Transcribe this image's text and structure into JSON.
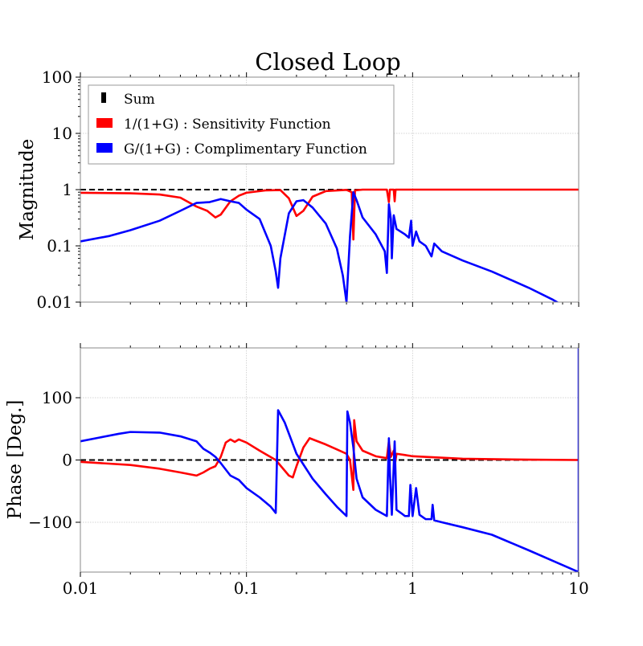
{
  "chart_data": {
    "type": "line",
    "title": "Closed Loop",
    "xscale": "log",
    "xlim": [
      0.01,
      10
    ],
    "x_ticks": [
      0.01,
      0.1,
      1,
      10
    ],
    "x_tick_labels": [
      "0.01",
      "0.1",
      "1",
      "10"
    ],
    "grid": true,
    "legend_position": "top-left",
    "legend": [
      {
        "label": "Sum",
        "color": "#000000"
      },
      {
        "label": "1/(1+G) : Sensitivity Function",
        "color": "#ff0000"
      },
      {
        "label": "G/(1+G) : Complimentary Function",
        "color": "#0000ff"
      }
    ],
    "panels": [
      {
        "ylabel": "Magnitude",
        "yscale": "log",
        "ylim": [
          0.01,
          100
        ],
        "y_ticks": [
          0.01,
          0.1,
          1,
          10,
          100
        ],
        "y_tick_labels": [
          "0.01",
          "0.1",
          "1",
          "10",
          "100"
        ],
        "series": [
          {
            "name": "Sum",
            "color": "#000000",
            "dashed": true,
            "points": [
              [
                0.01,
                1.0
              ],
              [
                10,
                1.0
              ]
            ]
          },
          {
            "name": "1/(1+G) : Sensitivity Function",
            "color": "#ff0000",
            "points": [
              [
                0.01,
                0.88
              ],
              [
                0.02,
                0.86
              ],
              [
                0.03,
                0.82
              ],
              [
                0.04,
                0.72
              ],
              [
                0.05,
                0.5
              ],
              [
                0.058,
                0.42
              ],
              [
                0.065,
                0.32
              ],
              [
                0.07,
                0.36
              ],
              [
                0.08,
                0.62
              ],
              [
                0.09,
                0.78
              ],
              [
                0.1,
                0.88
              ],
              [
                0.13,
                0.97
              ],
              [
                0.16,
                0.98
              ],
              [
                0.18,
                0.7
              ],
              [
                0.2,
                0.34
              ],
              [
                0.22,
                0.42
              ],
              [
                0.25,
                0.75
              ],
              [
                0.3,
                0.94
              ],
              [
                0.4,
                0.99
              ],
              [
                0.43,
                0.9
              ],
              [
                0.44,
                0.13
              ],
              [
                0.45,
                0.97
              ],
              [
                0.5,
                1.0
              ],
              [
                0.7,
                1.0
              ],
              [
                0.72,
                0.6
              ],
              [
                0.73,
                1.0
              ],
              [
                0.77,
                1.0
              ],
              [
                0.78,
                0.62
              ],
              [
                0.79,
                1.0
              ],
              [
                1,
                1.0
              ],
              [
                2,
                1.0
              ],
              [
                10,
                1.0
              ]
            ]
          },
          {
            "name": "G/(1+G) : Complimentary Function",
            "color": "#0000ff",
            "points": [
              [
                0.01,
                0.12
              ],
              [
                0.015,
                0.15
              ],
              [
                0.02,
                0.19
              ],
              [
                0.03,
                0.28
              ],
              [
                0.04,
                0.42
              ],
              [
                0.05,
                0.58
              ],
              [
                0.06,
                0.6
              ],
              [
                0.07,
                0.68
              ],
              [
                0.08,
                0.62
              ],
              [
                0.09,
                0.58
              ],
              [
                0.1,
                0.44
              ],
              [
                0.12,
                0.3
              ],
              [
                0.14,
                0.1
              ],
              [
                0.15,
                0.035
              ],
              [
                0.155,
                0.018
              ],
              [
                0.16,
                0.06
              ],
              [
                0.18,
                0.38
              ],
              [
                0.2,
                0.62
              ],
              [
                0.22,
                0.65
              ],
              [
                0.25,
                0.48
              ],
              [
                0.3,
                0.25
              ],
              [
                0.35,
                0.09
              ],
              [
                0.38,
                0.03
              ],
              [
                0.4,
                0.01
              ],
              [
                0.42,
                0.15
              ],
              [
                0.44,
                0.9
              ],
              [
                0.46,
                0.65
              ],
              [
                0.5,
                0.32
              ],
              [
                0.6,
                0.16
              ],
              [
                0.68,
                0.08
              ],
              [
                0.7,
                0.033
              ],
              [
                0.72,
                0.55
              ],
              [
                0.74,
                0.3
              ],
              [
                0.75,
                0.06
              ],
              [
                0.77,
                0.35
              ],
              [
                0.8,
                0.2
              ],
              [
                0.9,
                0.16
              ],
              [
                0.95,
                0.14
              ],
              [
                0.98,
                0.28
              ],
              [
                1.0,
                0.1
              ],
              [
                1.05,
                0.18
              ],
              [
                1.1,
                0.12
              ],
              [
                1.2,
                0.1
              ],
              [
                1.3,
                0.065
              ],
              [
                1.35,
                0.11
              ],
              [
                1.5,
                0.08
              ],
              [
                2,
                0.055
              ],
              [
                3,
                0.035
              ],
              [
                5,
                0.018
              ],
              [
                7,
                0.011
              ],
              [
                10,
                0.006
              ]
            ]
          }
        ]
      },
      {
        "ylabel": "Phase [Deg.]",
        "yscale": "linear",
        "ylim": [
          -180,
          180
        ],
        "y_ticks": [
          -100,
          0,
          100
        ],
        "y_tick_labels": [
          "−100",
          "0",
          "100"
        ],
        "series": [
          {
            "name": "Sum",
            "color": "#000000",
            "dashed": true,
            "points": [
              [
                0.01,
                0
              ],
              [
                10,
                0
              ]
            ]
          },
          {
            "name": "1/(1+G) : Sensitivity Function",
            "color": "#ff0000",
            "points": [
              [
                0.01,
                -3
              ],
              [
                0.02,
                -8
              ],
              [
                0.03,
                -14
              ],
              [
                0.04,
                -20
              ],
              [
                0.05,
                -25
              ],
              [
                0.055,
                -20
              ],
              [
                0.06,
                -14
              ],
              [
                0.065,
                -10
              ],
              [
                0.07,
                5
              ],
              [
                0.075,
                28
              ],
              [
                0.08,
                33
              ],
              [
                0.085,
                29
              ],
              [
                0.09,
                33
              ],
              [
                0.1,
                28
              ],
              [
                0.12,
                15
              ],
              [
                0.15,
                0
              ],
              [
                0.18,
                -25
              ],
              [
                0.19,
                -28
              ],
              [
                0.2,
                -10
              ],
              [
                0.22,
                20
              ],
              [
                0.24,
                35
              ],
              [
                0.3,
                25
              ],
              [
                0.35,
                17
              ],
              [
                0.4,
                10
              ],
              [
                0.42,
                0
              ],
              [
                0.44,
                -48
              ],
              [
                0.445,
                64
              ],
              [
                0.46,
                30
              ],
              [
                0.5,
                15
              ],
              [
                0.6,
                6
              ],
              [
                0.7,
                3
              ],
              [
                0.72,
                30
              ],
              [
                0.74,
                5
              ],
              [
                0.77,
                15
              ],
              [
                0.78,
                -10
              ],
              [
                0.8,
                10
              ],
              [
                0.9,
                8
              ],
              [
                1,
                6
              ],
              [
                2,
                2
              ],
              [
                5,
                0.5
              ],
              [
                10,
                0
              ]
            ]
          },
          {
            "name": "G/(1+G) : Complimentary Function",
            "color": "#0000ff",
            "points": [
              [
                0.01,
                30
              ],
              [
                0.013,
                36
              ],
              [
                0.017,
                42
              ],
              [
                0.02,
                45
              ],
              [
                0.03,
                44
              ],
              [
                0.04,
                38
              ],
              [
                0.05,
                30
              ],
              [
                0.055,
                18
              ],
              [
                0.06,
                12
              ],
              [
                0.065,
                5
              ],
              [
                0.07,
                -5
              ],
              [
                0.08,
                -25
              ],
              [
                0.09,
                -32
              ],
              [
                0.1,
                -45
              ],
              [
                0.12,
                -60
              ],
              [
                0.14,
                -75
              ],
              [
                0.15,
                -85
              ],
              [
                0.155,
                80
              ],
              [
                0.17,
                60
              ],
              [
                0.2,
                10
              ],
              [
                0.25,
                -30
              ],
              [
                0.3,
                -55
              ],
              [
                0.35,
                -75
              ],
              [
                0.4,
                -90
              ],
              [
                0.405,
                78
              ],
              [
                0.42,
                60
              ],
              [
                0.44,
                20
              ],
              [
                0.46,
                -30
              ],
              [
                0.5,
                -60
              ],
              [
                0.6,
                -80
              ],
              [
                0.7,
                -90
              ],
              [
                0.72,
                35
              ],
              [
                0.73,
                -20
              ],
              [
                0.75,
                -88
              ],
              [
                0.78,
                30
              ],
              [
                0.8,
                -80
              ],
              [
                0.85,
                -85
              ],
              [
                0.9,
                -90
              ],
              [
                0.95,
                -90
              ],
              [
                0.97,
                -40
              ],
              [
                1.0,
                -90
              ],
              [
                1.05,
                -45
              ],
              [
                1.1,
                -88
              ],
              [
                1.2,
                -95
              ],
              [
                1.3,
                -95
              ],
              [
                1.32,
                -72
              ],
              [
                1.35,
                -97
              ],
              [
                1.5,
                -100
              ],
              [
                2,
                -108
              ],
              [
                3,
                -120
              ],
              [
                5,
                -145
              ],
              [
                7,
                -162
              ],
              [
                10,
                -180
              ],
              [
                10,
                180
              ]
            ]
          }
        ]
      }
    ]
  }
}
